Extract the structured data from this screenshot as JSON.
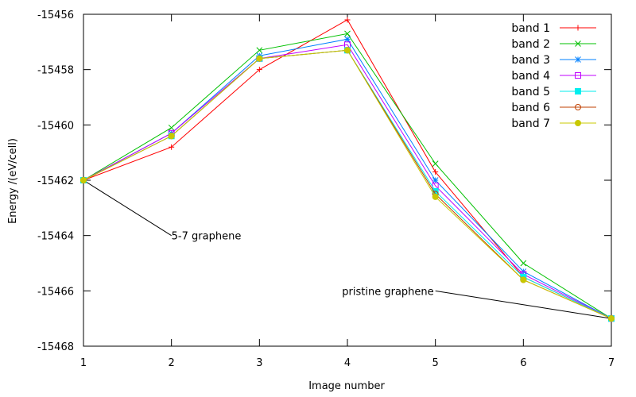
{
  "chart_data": {
    "type": "line",
    "xlabel": "Image number",
    "ylabel": "Energy /(eV/cell)",
    "xlim": [
      1,
      7
    ],
    "ylim": [
      -15468,
      -15456
    ],
    "xticks": [
      "1",
      "2",
      "3",
      "4",
      "5",
      "6",
      "7"
    ],
    "yticks": [
      "-15456",
      "-15458",
      "-15460",
      "-15462",
      "-15464",
      "-15466",
      "-15468"
    ],
    "grid": false,
    "legend_position": "top-right",
    "x": [
      1,
      2,
      3,
      4,
      5,
      6,
      7
    ],
    "series": [
      {
        "name": "band 1",
        "color": "#ff0000",
        "marker": "plus",
        "values": [
          -15462.0,
          -15460.8,
          -15458.0,
          -15456.2,
          -15461.7,
          -15465.5,
          -15467.0
        ]
      },
      {
        "name": "band 2",
        "color": "#00c000",
        "marker": "cross",
        "values": [
          -15462.0,
          -15460.1,
          -15457.3,
          -15456.7,
          -15461.4,
          -15465.0,
          -15467.0
        ]
      },
      {
        "name": "band 3",
        "color": "#0080ff",
        "marker": "star",
        "values": [
          -15462.0,
          -15460.3,
          -15457.5,
          -15456.9,
          -15462.0,
          -15465.3,
          -15467.0
        ]
      },
      {
        "name": "band 4",
        "color": "#c000ff",
        "marker": "square",
        "values": [
          -15462.0,
          -15460.3,
          -15457.6,
          -15457.1,
          -15462.2,
          -15465.4,
          -15467.0
        ]
      },
      {
        "name": "band 5",
        "color": "#00eeee",
        "marker": "filled-square",
        "values": [
          -15462.0,
          -15460.4,
          -15457.6,
          -15457.3,
          -15462.4,
          -15465.5,
          -15467.0
        ]
      },
      {
        "name": "band 6",
        "color": "#c04000",
        "marker": "circle",
        "values": [
          -15462.0,
          -15460.4,
          -15457.6,
          -15457.3,
          -15462.5,
          -15465.6,
          -15467.0
        ]
      },
      {
        "name": "band 7",
        "color": "#c8c800",
        "marker": "filled-circle",
        "values": [
          -15462.0,
          -15460.4,
          -15457.6,
          -15457.3,
          -15462.6,
          -15465.6,
          -15467.0
        ]
      }
    ],
    "annotations": [
      {
        "text": "5-7 graphene",
        "point": [
          1,
          -15462.0
        ],
        "label_at": [
          2,
          -15464.0
        ]
      },
      {
        "text": "pristine graphene",
        "point": [
          7,
          -15467.0
        ],
        "label_at": [
          5,
          -15466.0
        ]
      }
    ]
  }
}
